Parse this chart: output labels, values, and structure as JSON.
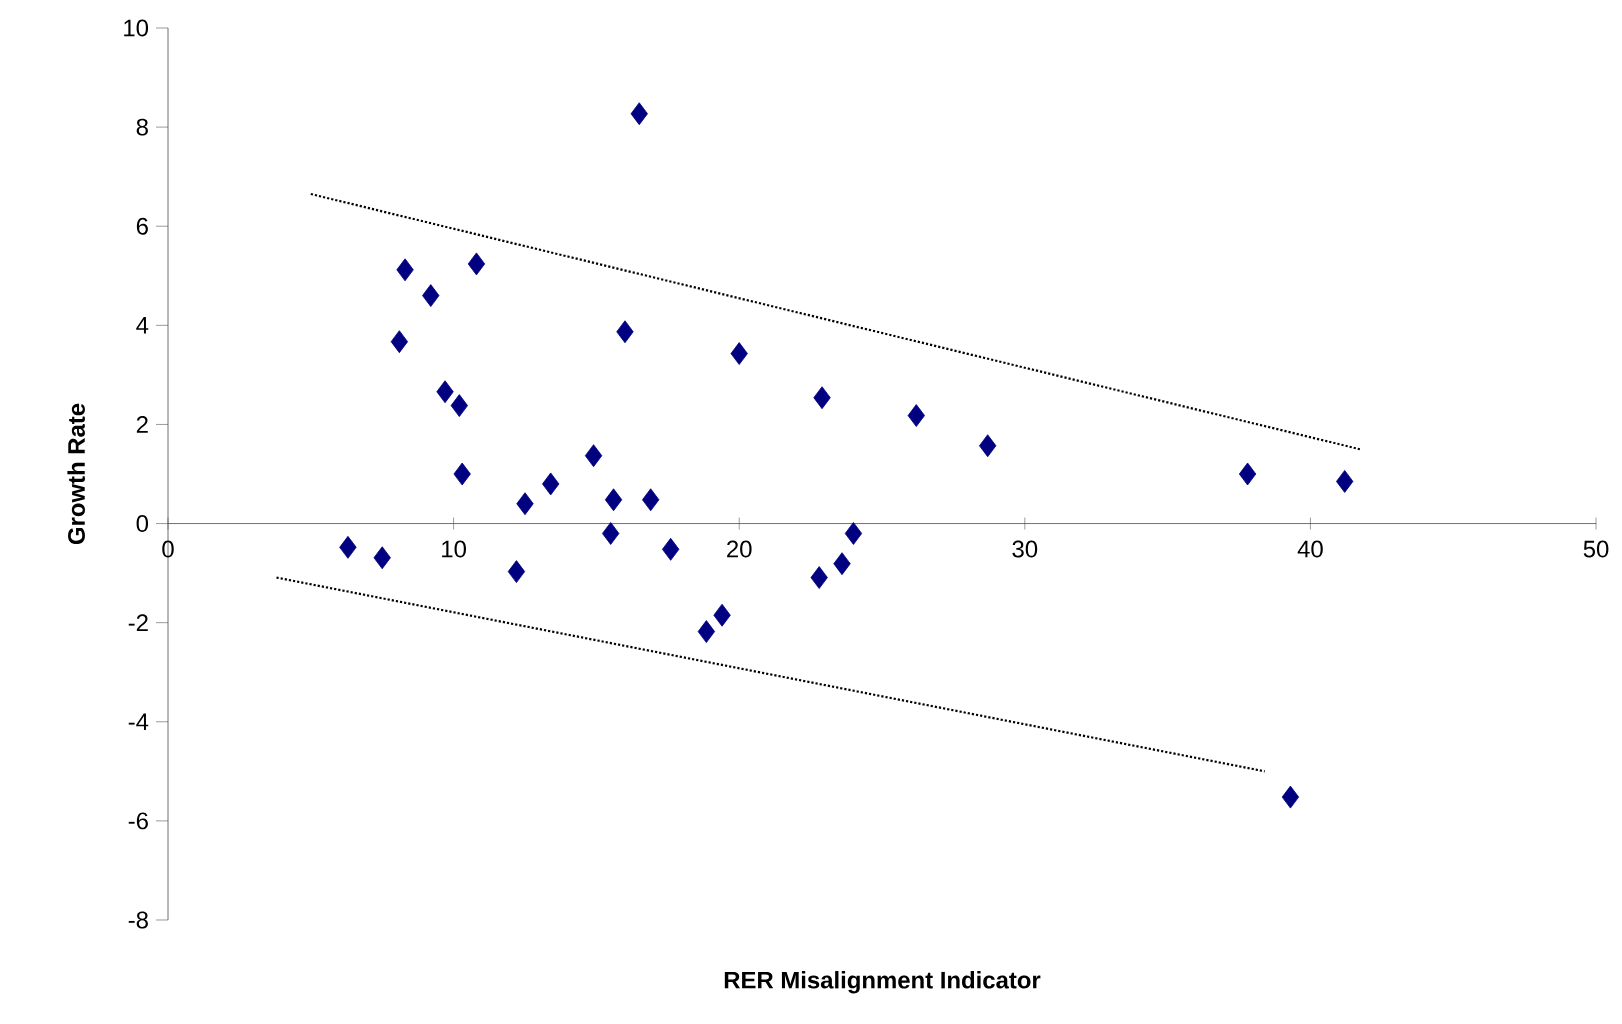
{
  "chart_data": {
    "type": "scatter",
    "xlabel": "RER Misalignment Indicator",
    "ylabel": "Growth Rate",
    "xlim": [
      0,
      50
    ],
    "ylim": [
      -8,
      10
    ],
    "xticks": [
      0,
      10,
      20,
      30,
      40,
      50
    ],
    "yticks": [
      -8,
      -6,
      -4,
      -2,
      0,
      2,
      4,
      6,
      8,
      10
    ],
    "marker": "diamond",
    "series": [
      {
        "color": "#000080",
        "x": [
          6.3,
          7.5,
          8.1,
          8.3,
          9.2,
          9.7,
          10.2,
          10.3,
          10.8,
          12.2,
          12.5,
          13.4,
          14.9,
          15.6,
          15.5,
          16.0,
          16.5,
          16.9,
          17.6,
          18.85,
          19.4,
          20.0,
          22.8,
          22.9,
          23.6,
          24.0,
          26.2,
          28.7,
          37.8,
          41.2,
          39.3
        ],
        "values": [
          -0.48,
          -0.69,
          3.67,
          5.12,
          4.6,
          2.66,
          2.38,
          1.0,
          5.24,
          -0.97,
          0.4,
          0.8,
          1.37,
          0.48,
          -0.2,
          3.87,
          8.27,
          0.48,
          -0.52,
          -2.18,
          -1.85,
          3.43,
          -1.09,
          2.54,
          -0.81,
          -0.2,
          2.18,
          1.57,
          1.0,
          0.85,
          -5.52
        ]
      },
      {
        "type": "line",
        "color": "#000000",
        "line_style": "dotted",
        "marker": "none",
        "x": [
          5.0,
          41.8
        ],
        "values": [
          6.65,
          1.49
        ]
      },
      {
        "type": "line",
        "color": "#000000",
        "line_style": "dotted",
        "marker": "none",
        "x": [
          3.8,
          38.4
        ],
        "values": [
          -1.09,
          -5.0
        ]
      }
    ]
  }
}
